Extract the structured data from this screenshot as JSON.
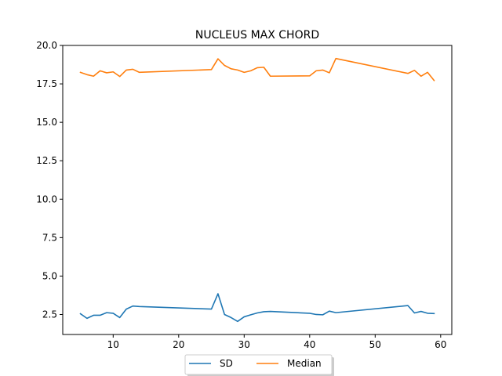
{
  "chart_data": {
    "type": "line",
    "title": "NUCLEUS MAX CHORD",
    "xlabel": "",
    "ylabel": "",
    "xlim": [
      2.3,
      61.7
    ],
    "ylim": [
      1.2,
      20.0
    ],
    "xticks": [
      10,
      20,
      30,
      40,
      50,
      60
    ],
    "yticks": [
      2.5,
      5.0,
      7.5,
      10.0,
      12.5,
      15.0,
      17.5,
      20.0
    ],
    "xtick_labels": [
      "10",
      "20",
      "30",
      "40",
      "50",
      "60"
    ],
    "ytick_labels": [
      "2.5",
      "5.0",
      "7.5",
      "10.0",
      "12.5",
      "15.0",
      "17.5",
      "20.0"
    ],
    "legend_position": "bottom-center, outside plot",
    "grid": false,
    "series": [
      {
        "name": "SD",
        "color": "#1f77b4",
        "x": [
          5,
          6,
          7,
          8,
          9,
          10,
          11,
          12,
          13,
          14,
          25,
          26,
          27,
          28,
          29,
          30,
          31,
          32,
          33,
          34,
          40,
          41,
          42,
          43,
          44,
          55,
          56,
          57,
          58,
          59
        ],
        "y": [
          2.55,
          2.25,
          2.45,
          2.45,
          2.62,
          2.58,
          2.3,
          2.85,
          3.05,
          3.02,
          2.85,
          3.85,
          2.5,
          2.3,
          2.05,
          2.35,
          2.48,
          2.6,
          2.68,
          2.7,
          2.58,
          2.5,
          2.48,
          2.72,
          2.62,
          3.08,
          2.6,
          2.7,
          2.58,
          2.56
        ]
      },
      {
        "name": "Median",
        "color": "#ff7f0e",
        "x": [
          5,
          6,
          7,
          8,
          9,
          10,
          11,
          12,
          13,
          14,
          25,
          26,
          27,
          28,
          29,
          30,
          31,
          32,
          33,
          34,
          40,
          41,
          42,
          43,
          44,
          55,
          56,
          57,
          58,
          59
        ],
        "y": [
          18.25,
          18.1,
          18.0,
          18.35,
          18.22,
          18.28,
          17.98,
          18.4,
          18.45,
          18.25,
          18.43,
          19.13,
          18.7,
          18.48,
          18.4,
          18.25,
          18.35,
          18.55,
          18.58,
          18.0,
          18.02,
          18.35,
          18.4,
          18.22,
          19.15,
          18.18,
          18.38,
          18.0,
          18.25,
          17.72
        ]
      }
    ]
  }
}
